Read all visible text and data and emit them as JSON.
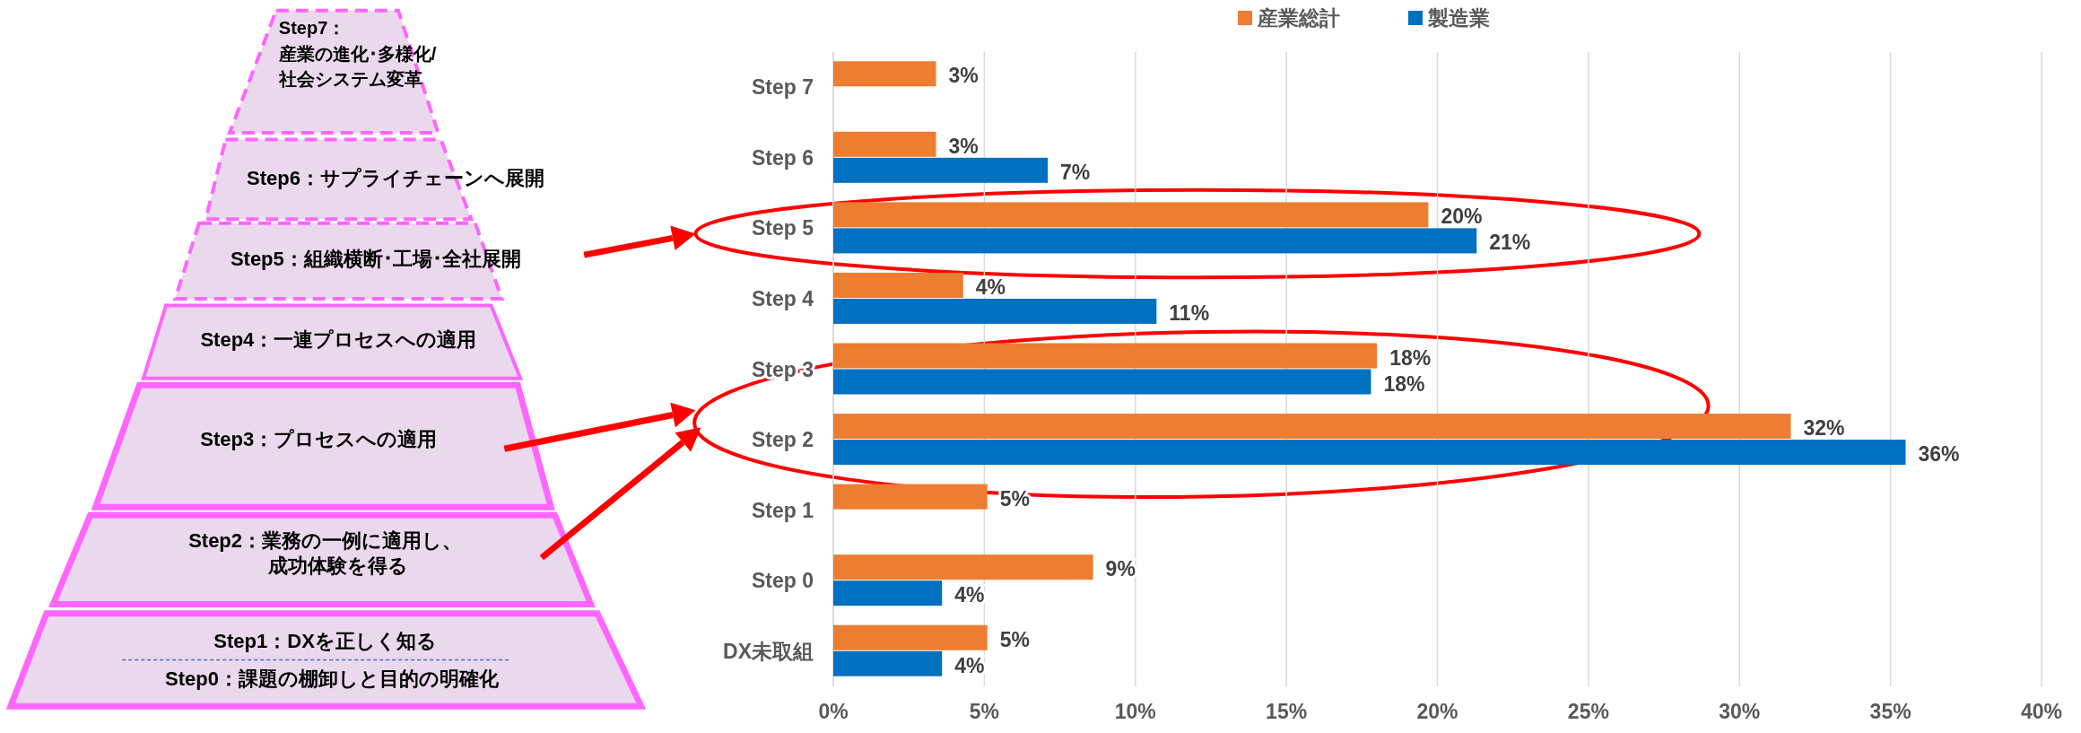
{
  "chart_data": [
    {
      "type": "other",
      "annotations": [
        "Step7：",
        "産業の進化･多様化/",
        "社会システム変革",
        "Step6：サプライチェーンへ展開",
        "Step5：組織横断･工場･全社展開",
        "Step4：一連プロセスへの適用",
        "Step3：プロセスへの適用",
        "Step2：業務の一例に適用し、",
        "成功体験を得る",
        "Step1：DXを正しく知る",
        "Step0：課題の棚卸しと目的の明確化"
      ]
    },
    {
      "type": "bar",
      "orientation": "horizontal",
      "categories": [
        "Step 7",
        "Step 6",
        "Step 5",
        "Step 4",
        "Step 3",
        "Step 2",
        "Step 1",
        "Step 0",
        "DX未取組"
      ],
      "series": [
        {
          "name": "産業総計",
          "color": "#ed7d31",
          "values": [
            3.4,
            3.4,
            19.7,
            4.3,
            18.0,
            31.7,
            5.1,
            8.6,
            5.1
          ],
          "value_labels": [
            "3%",
            "3%",
            "20%",
            "4%",
            "18%",
            "32%",
            "5%",
            "9%",
            "5%"
          ]
        },
        {
          "name": "製造業",
          "color": "#0070c0",
          "values": [
            null,
            7.1,
            21.3,
            10.7,
            17.8,
            35.5,
            null,
            3.6,
            3.6
          ],
          "value_labels": [
            null,
            "7%",
            "21%",
            "11%",
            "18%",
            "36%",
            null,
            "4%",
            "4%"
          ]
        }
      ],
      "xlim": [
        0,
        40
      ],
      "xticks": [
        {
          "value": 0,
          "label": "0%"
        },
        {
          "value": 5,
          "label": "5%"
        },
        {
          "value": 10,
          "label": "10%"
        },
        {
          "value": 15,
          "label": "15%"
        },
        {
          "value": 20,
          "label": "20%"
        },
        {
          "value": 25,
          "label": "25%"
        },
        {
          "value": 30,
          "label": "30%"
        },
        {
          "value": 35,
          "label": "35%"
        },
        {
          "value": 40,
          "label": "40%"
        }
      ],
      "grid": "x",
      "legend": "top"
    }
  ]
}
